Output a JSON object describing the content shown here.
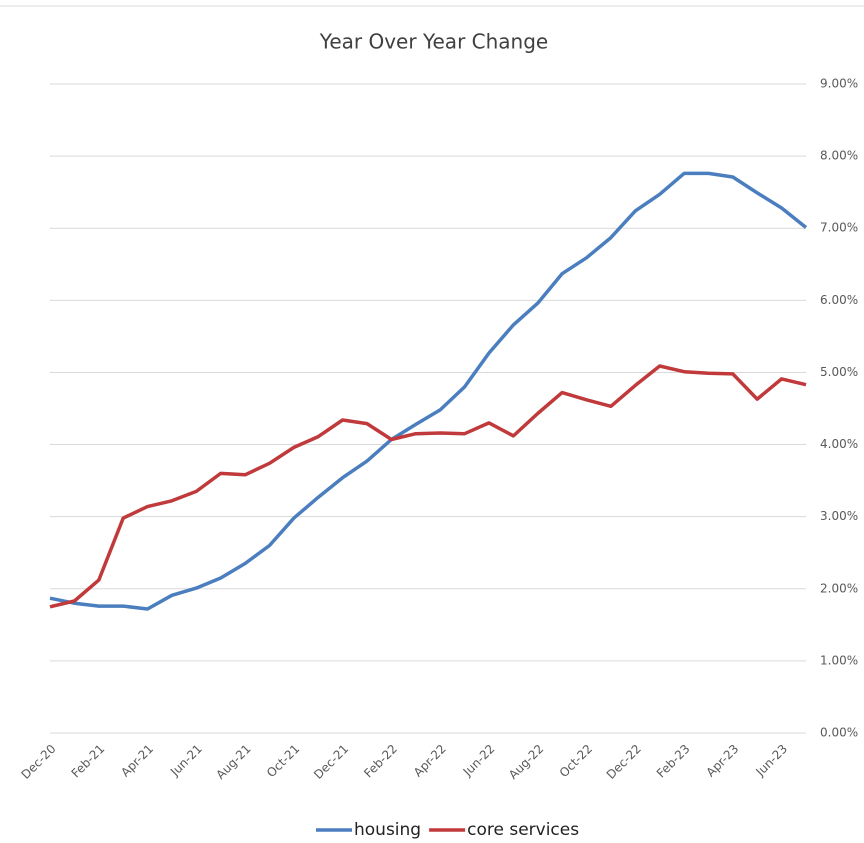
{
  "chart_data": {
    "type": "line",
    "title": "Year Over Year Change",
    "categories": [
      "Dec-20",
      null,
      "Feb-21",
      null,
      "Apr-21",
      null,
      "Jun-21",
      null,
      "Aug-21",
      null,
      "Oct-21",
      null,
      "Dec-21",
      null,
      "Feb-22",
      null,
      "Apr-22",
      null,
      "Jun-22",
      null,
      "Aug-22",
      null,
      "Oct-22",
      null,
      "Dec-22",
      null,
      "Feb-23",
      null,
      "Apr-23",
      null,
      "Jun-23",
      null
    ],
    "series": [
      {
        "name": "housing",
        "color": "#4a7ebf",
        "values": [
          1.87,
          1.8,
          1.76,
          1.76,
          1.72,
          1.91,
          2.01,
          2.15,
          2.35,
          2.6,
          2.98,
          3.27,
          3.54,
          3.77,
          4.07,
          4.28,
          4.48,
          4.8,
          5.27,
          5.66,
          5.96,
          6.37,
          6.59,
          6.87,
          7.24,
          7.47,
          7.76,
          7.76,
          7.71,
          7.49,
          7.28,
          7.01
        ]
      },
      {
        "name": "core services",
        "color": "#c0393b",
        "values": [
          1.75,
          1.83,
          2.12,
          2.98,
          3.14,
          3.22,
          3.35,
          3.6,
          3.58,
          3.74,
          3.96,
          4.11,
          4.34,
          4.29,
          4.07,
          4.15,
          4.16,
          4.15,
          4.3,
          4.12,
          4.43,
          4.72,
          4.62,
          4.53,
          4.82,
          5.09,
          5.01,
          4.99,
          4.98,
          4.63,
          4.91,
          4.83
        ]
      }
    ],
    "ylim": [
      0,
      9
    ],
    "yticks": [
      {
        "value": 0,
        "label": "0.00%"
      },
      {
        "value": 1,
        "label": "1.00%"
      },
      {
        "value": 2,
        "label": "2.00%"
      },
      {
        "value": 3,
        "label": "3.00%"
      },
      {
        "value": 4,
        "label": "4.00%"
      },
      {
        "value": 5,
        "label": "5.00%"
      },
      {
        "value": 6,
        "label": "6.00%"
      },
      {
        "value": 7,
        "label": "7.00%"
      },
      {
        "value": 8,
        "label": "8.00%"
      },
      {
        "value": 9,
        "label": "9.00%"
      }
    ],
    "grid": true,
    "legend": "bottom"
  }
}
